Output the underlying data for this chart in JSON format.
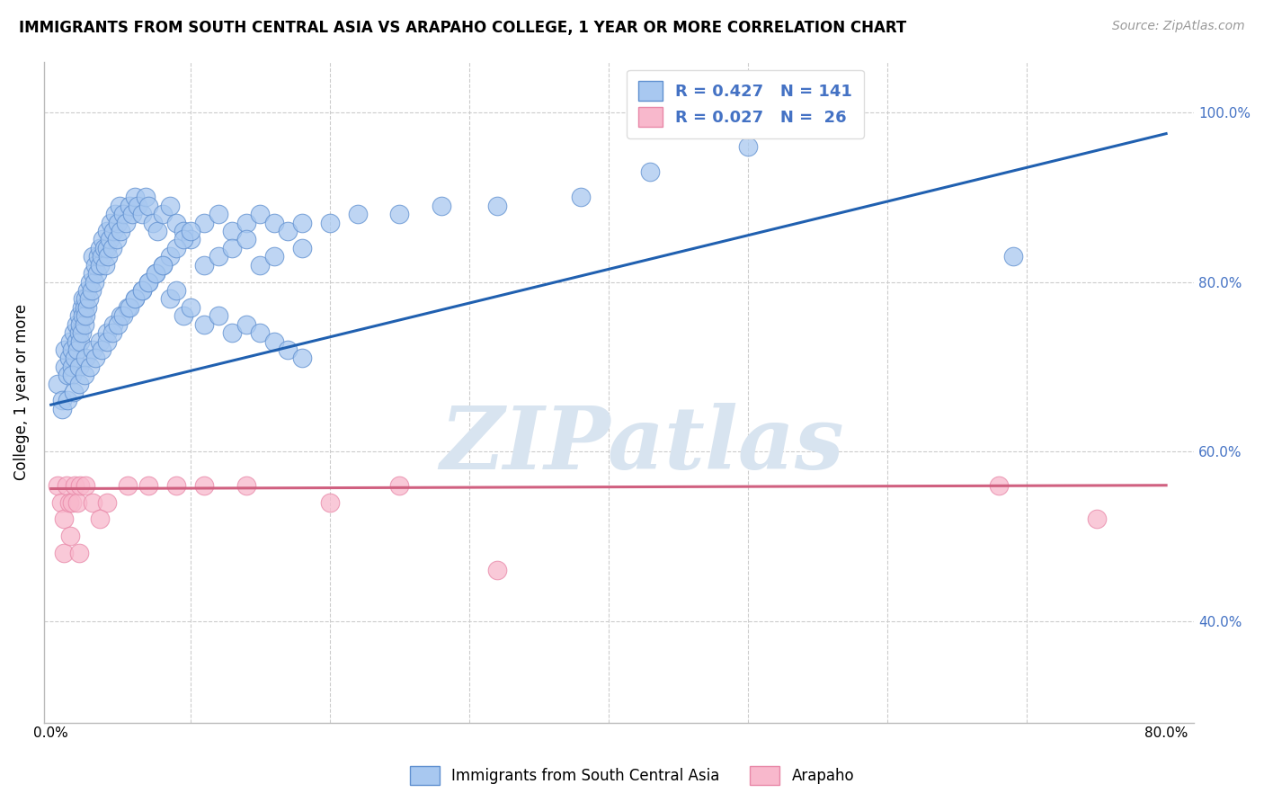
{
  "title": "IMMIGRANTS FROM SOUTH CENTRAL ASIA VS ARAPAHO COLLEGE, 1 YEAR OR MORE CORRELATION CHART",
  "source": "Source: ZipAtlas.com",
  "ylabel": "College, 1 year or more",
  "xlim": [
    -0.005,
    0.82
  ],
  "ylim": [
    0.28,
    1.06
  ],
  "xticks": [
    0.0,
    0.1,
    0.2,
    0.3,
    0.4,
    0.5,
    0.6,
    0.7,
    0.8
  ],
  "xticklabels": [
    "0.0%",
    "",
    "",
    "",
    "",
    "",
    "",
    "",
    "80.0%"
  ],
  "ytick_positions": [
    0.4,
    0.6,
    0.8,
    1.0
  ],
  "yticklabels": [
    "40.0%",
    "60.0%",
    "80.0%",
    "100.0%"
  ],
  "blue_color": "#A8C8F0",
  "blue_edge_color": "#6090D0",
  "pink_color": "#F8B8CC",
  "pink_edge_color": "#E888A8",
  "blue_line_color": "#2060B0",
  "pink_line_color": "#D06080",
  "watermark_color": "#D8E4F0",
  "legend_text_color": "#4472C4",
  "R_blue": 0.427,
  "N_blue": 141,
  "R_pink": 0.027,
  "N_pink": 26,
  "blue_line_x0": 0.0,
  "blue_line_y0": 0.655,
  "blue_line_x1": 0.8,
  "blue_line_y1": 0.975,
  "pink_line_x0": 0.0,
  "pink_line_y0": 0.556,
  "pink_line_x1": 0.8,
  "pink_line_y1": 0.56,
  "blue_scatter_x": [
    0.005,
    0.008,
    0.01,
    0.01,
    0.012,
    0.013,
    0.014,
    0.015,
    0.015,
    0.016,
    0.017,
    0.018,
    0.018,
    0.019,
    0.02,
    0.02,
    0.021,
    0.021,
    0.022,
    0.022,
    0.023,
    0.023,
    0.024,
    0.024,
    0.025,
    0.025,
    0.026,
    0.026,
    0.027,
    0.028,
    0.029,
    0.03,
    0.03,
    0.031,
    0.032,
    0.033,
    0.034,
    0.035,
    0.035,
    0.036,
    0.037,
    0.038,
    0.039,
    0.04,
    0.04,
    0.041,
    0.042,
    0.043,
    0.044,
    0.045,
    0.046,
    0.047,
    0.048,
    0.049,
    0.05,
    0.052,
    0.054,
    0.056,
    0.058,
    0.06,
    0.062,
    0.065,
    0.068,
    0.07,
    0.073,
    0.076,
    0.08,
    0.085,
    0.09,
    0.095,
    0.1,
    0.11,
    0.12,
    0.13,
    0.14,
    0.15,
    0.16,
    0.17,
    0.18,
    0.2,
    0.22,
    0.25,
    0.28,
    0.32,
    0.38,
    0.015,
    0.02,
    0.025,
    0.03,
    0.035,
    0.04,
    0.045,
    0.05,
    0.055,
    0.06,
    0.065,
    0.07,
    0.075,
    0.08,
    0.085,
    0.09,
    0.095,
    0.1,
    0.11,
    0.12,
    0.13,
    0.14,
    0.15,
    0.16,
    0.18,
    0.008,
    0.012,
    0.016,
    0.02,
    0.024,
    0.028,
    0.032,
    0.036,
    0.04,
    0.044,
    0.048,
    0.052,
    0.056,
    0.06,
    0.065,
    0.07,
    0.075,
    0.08,
    0.085,
    0.09,
    0.095,
    0.1,
    0.11,
    0.12,
    0.13,
    0.14,
    0.15,
    0.16,
    0.17,
    0.18,
    0.43,
    0.5,
    0.69
  ],
  "blue_scatter_y": [
    0.68,
    0.66,
    0.7,
    0.72,
    0.69,
    0.71,
    0.73,
    0.7,
    0.72,
    0.74,
    0.71,
    0.73,
    0.75,
    0.72,
    0.74,
    0.76,
    0.73,
    0.75,
    0.77,
    0.74,
    0.76,
    0.78,
    0.75,
    0.77,
    0.76,
    0.78,
    0.77,
    0.79,
    0.78,
    0.8,
    0.79,
    0.81,
    0.83,
    0.8,
    0.82,
    0.81,
    0.83,
    0.82,
    0.84,
    0.83,
    0.85,
    0.84,
    0.82,
    0.84,
    0.86,
    0.83,
    0.85,
    0.87,
    0.84,
    0.86,
    0.88,
    0.85,
    0.87,
    0.89,
    0.86,
    0.88,
    0.87,
    0.89,
    0.88,
    0.9,
    0.89,
    0.88,
    0.9,
    0.89,
    0.87,
    0.86,
    0.88,
    0.89,
    0.87,
    0.86,
    0.85,
    0.87,
    0.88,
    0.86,
    0.87,
    0.88,
    0.87,
    0.86,
    0.87,
    0.87,
    0.88,
    0.88,
    0.89,
    0.89,
    0.9,
    0.69,
    0.7,
    0.71,
    0.72,
    0.73,
    0.74,
    0.75,
    0.76,
    0.77,
    0.78,
    0.79,
    0.8,
    0.81,
    0.82,
    0.83,
    0.84,
    0.85,
    0.86,
    0.82,
    0.83,
    0.84,
    0.85,
    0.82,
    0.83,
    0.84,
    0.65,
    0.66,
    0.67,
    0.68,
    0.69,
    0.7,
    0.71,
    0.72,
    0.73,
    0.74,
    0.75,
    0.76,
    0.77,
    0.78,
    0.79,
    0.8,
    0.81,
    0.82,
    0.78,
    0.79,
    0.76,
    0.77,
    0.75,
    0.76,
    0.74,
    0.75,
    0.74,
    0.73,
    0.72,
    0.71,
    0.93,
    0.96,
    0.83
  ],
  "pink_scatter_x": [
    0.005,
    0.007,
    0.009,
    0.011,
    0.013,
    0.015,
    0.017,
    0.019,
    0.021,
    0.025,
    0.03,
    0.04,
    0.055,
    0.07,
    0.09,
    0.11,
    0.14,
    0.2,
    0.25,
    0.32,
    0.68,
    0.75,
    0.009,
    0.014,
    0.02,
    0.035
  ],
  "pink_scatter_y": [
    0.56,
    0.54,
    0.52,
    0.56,
    0.54,
    0.54,
    0.56,
    0.54,
    0.56,
    0.56,
    0.54,
    0.54,
    0.56,
    0.56,
    0.56,
    0.56,
    0.56,
    0.54,
    0.56,
    0.46,
    0.56,
    0.52,
    0.48,
    0.5,
    0.48,
    0.52
  ]
}
